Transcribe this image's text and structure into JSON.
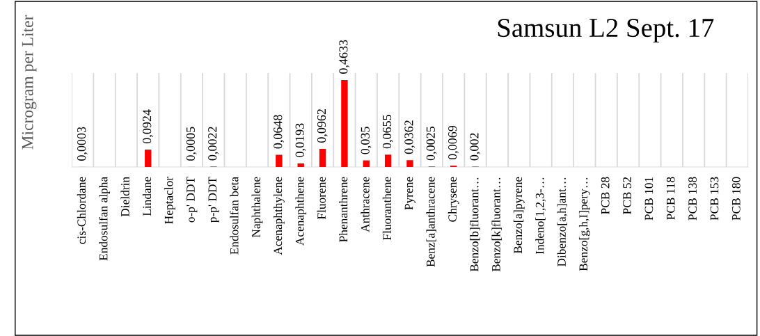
{
  "chart_data": {
    "type": "bar",
    "title": "Samsun L2 Sept. 17",
    "ylabel": "Microgram per Liter",
    "categories": [
      "cis-Chlordane",
      "Endosulfan alpha",
      "Dieldrin",
      "Lindane",
      "Heptaclor",
      "o-p' DDT",
      "p-p' DDT",
      "Endosulfan beta",
      "Naphthalene",
      "Acenaphthylene",
      "Acenaphthene",
      "Fluorene",
      "Phenanthrene",
      "Anthracene",
      "Fluoranthene",
      "Pyrene",
      "Benz[a]anthracene",
      "Chrysene",
      "Benzo[b]fluorant…",
      "Benzo[k]fluorant…",
      "Benzo[a]pyrene",
      "Indeno[1,2,3-…",
      "Dibenzo[a,h]ant…",
      "Benzo[g,h,I]pery…",
      "PCB 28",
      "PCB 52",
      "PCB 101",
      "PCB 118",
      "PCB 138",
      "PCB 153",
      "PCB 180"
    ],
    "values": [
      0.0003,
      null,
      null,
      0.0924,
      null,
      0.0005,
      0.0022,
      null,
      null,
      0.0648,
      0.0193,
      0.0962,
      0.4633,
      0.035,
      0.0655,
      0.0362,
      0.0025,
      0.0069,
      0.002,
      null,
      null,
      null,
      null,
      null,
      null,
      null,
      null,
      null,
      null,
      null,
      null
    ],
    "value_labels": [
      "0,0003",
      null,
      null,
      "0,0924",
      null,
      "0,0005",
      "0,0022",
      null,
      null,
      "0,0648",
      "0,0193",
      "0,0962",
      "0,4633",
      "0,035",
      "0,0655",
      "0,0362",
      "0,0025",
      "0,0069",
      "0,002",
      null,
      null,
      null,
      null,
      null,
      null,
      null,
      null,
      null,
      null,
      null,
      null
    ],
    "color": "#ff0000",
    "ylim": [
      0,
      0.5
    ],
    "tick_labels": "x",
    "grid": "x",
    "legend": false
  }
}
